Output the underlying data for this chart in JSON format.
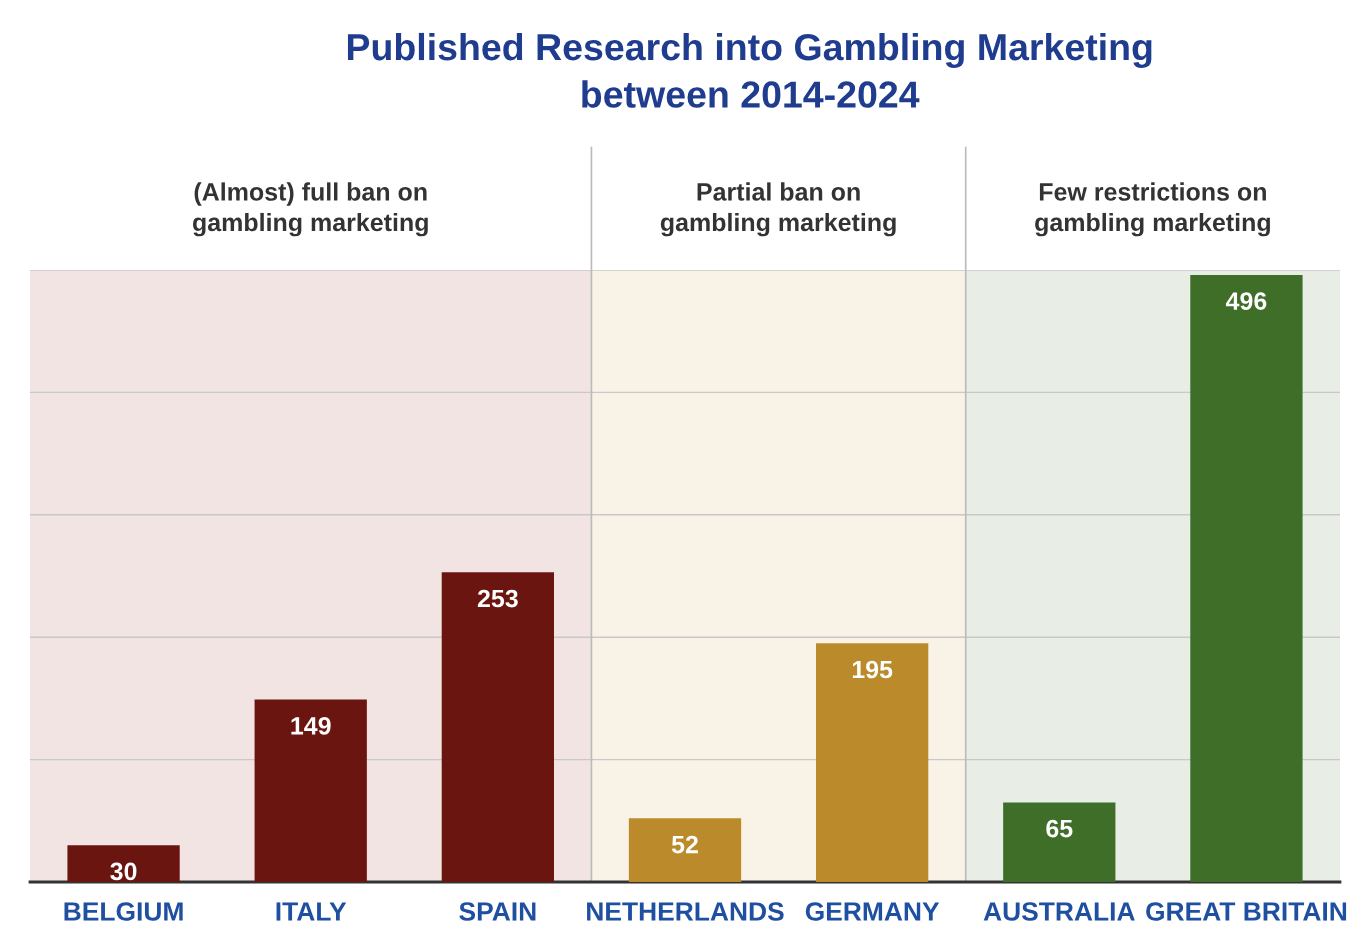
{
  "chart_data": {
    "type": "bar",
    "title": "Published Research into Gambling Marketing\nbetween 2014-2024",
    "categories": [
      "BELGIUM",
      "ITALY",
      "SPAIN",
      "NETHERLANDS",
      "GERMANY",
      "AUSTRALIA",
      "GREAT BRITAIN"
    ],
    "values": [
      30,
      149,
      253,
      52,
      195,
      65,
      496
    ],
    "colors": [
      "#6b1510",
      "#6b1510",
      "#6b1510",
      "#bb8b2b",
      "#bb8b2b",
      "#3f6e29",
      "#3f6e29"
    ],
    "ylim": [
      0,
      500
    ],
    "yticks": [
      {
        "value": 0,
        "label": null
      },
      {
        "value": 100,
        "label": null
      },
      {
        "value": 200,
        "label": null
      },
      {
        "value": 300,
        "label": null
      },
      {
        "value": 400,
        "label": null
      },
      {
        "value": 500,
        "label": null
      }
    ],
    "tick_labels": "x",
    "grid": "y",
    "data_labels": true,
    "bands": [
      {
        "axis": "x",
        "from": "BELGIUM",
        "to": "SPAIN",
        "label": "(Almost) full ban on\ngambling marketing",
        "color": "#f3e4e4"
      },
      {
        "axis": "x",
        "from": "NETHERLANDS",
        "to": "GERMANY",
        "label": "Partial ban on\ngambling marketing",
        "color": "#f8f3e6"
      },
      {
        "axis": "x",
        "from": "AUSTRALIA",
        "to": "GREAT BRITAIN",
        "label": "Few restrictions on\ngambling marketing",
        "color": "#e8eee6"
      }
    ]
  }
}
